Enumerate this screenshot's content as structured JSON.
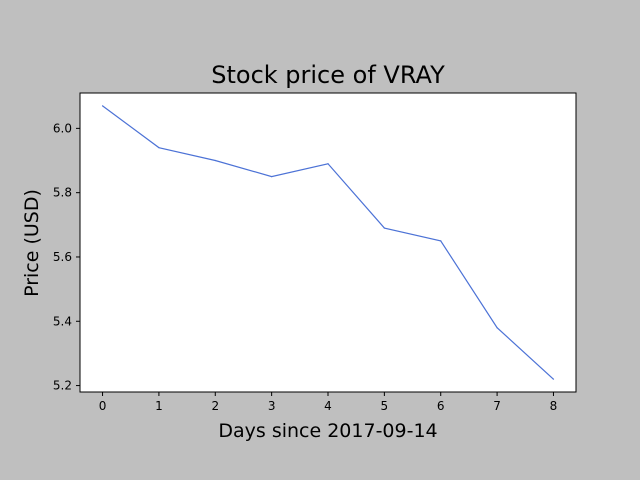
{
  "chart_data": {
    "type": "line",
    "title": "Stock price of VRAY",
    "xlabel": "Days since 2017-09-14",
    "ylabel": "Price (USD)",
    "x": [
      0,
      1,
      2,
      3,
      4,
      5,
      6,
      7,
      8
    ],
    "series": [
      {
        "values": [
          6.07,
          5.94,
          5.9,
          5.85,
          5.89,
          5.69,
          5.65,
          5.38,
          5.22
        ]
      }
    ],
    "xlim": [
      -0.4,
      8.4
    ],
    "ylim": [
      5.18,
      6.11
    ],
    "xticks": [
      0,
      1,
      2,
      3,
      4,
      5,
      6,
      7,
      8
    ],
    "yticks": [
      "5.2",
      "5.4",
      "5.6",
      "5.8",
      "6.0"
    ],
    "grid": false,
    "line_color": "#4c72d6",
    "background_color": "#bfbfbf",
    "plot_area_color": "#ffffff"
  }
}
